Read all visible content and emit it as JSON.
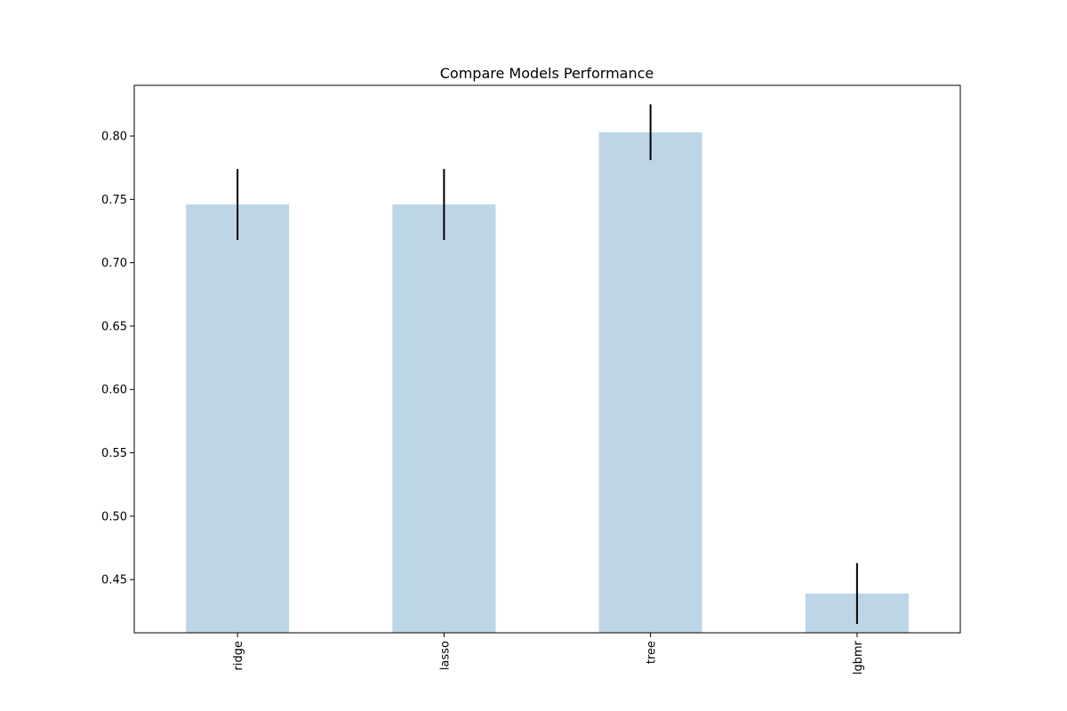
{
  "chart_data": {
    "type": "bar",
    "title": "Compare Models Performance",
    "xlabel": "",
    "ylabel": "",
    "categories": [
      "ridge",
      "lasso",
      "tree",
      "lgbmr"
    ],
    "values": [
      0.746,
      0.746,
      0.803,
      0.439
    ],
    "errors": [
      0.028,
      0.028,
      0.022,
      0.024
    ],
    "ylim": [
      0.408,
      0.84
    ],
    "yticks": [
      0.45,
      0.5,
      0.55,
      0.6,
      0.65,
      0.7,
      0.75,
      0.8
    ],
    "ytick_labels": [
      "0.45",
      "0.50",
      "0.55",
      "0.60",
      "0.65",
      "0.70",
      "0.75",
      "0.80"
    ],
    "grid": false,
    "bar_color": "#bcd6e8",
    "error_color": "#000000",
    "x_tick_rotation": "vertical"
  }
}
